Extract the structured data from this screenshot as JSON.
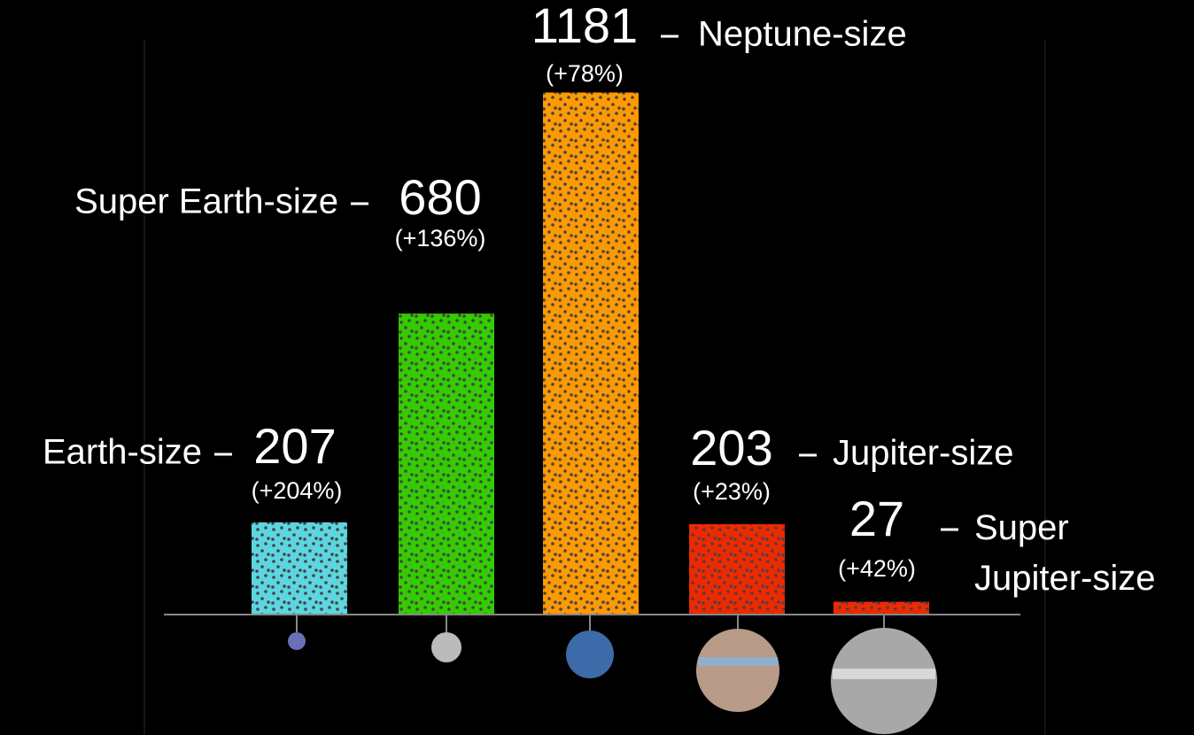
{
  "chart_data": {
    "type": "bar",
    "categories": [
      "Earth-size",
      "Super Earth-size",
      "Neptune-size",
      "Jupiter-size",
      "Super Jupiter-size"
    ],
    "values": [
      207,
      680,
      1181,
      203,
      27
    ],
    "annotations": [
      "(+204%)",
      "(+136%)",
      "(+78%)",
      "(+23%)",
      "(+42%)"
    ],
    "colors": [
      "#5cd6e0",
      "#33cc00",
      "#ff9900",
      "#f02800",
      "#f02800"
    ],
    "ylim": [
      0,
      1200
    ]
  }
}
